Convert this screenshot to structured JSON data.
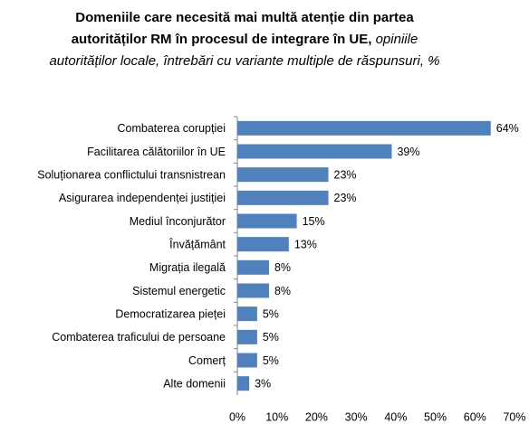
{
  "chart_data": {
    "type": "bar",
    "orientation": "horizontal",
    "title": "Domeniile care necesită mai multă atenție din partea autorităților  RM în procesul de integrare în UE,",
    "subtitle": "opiniile autorităților locale, întrebări cu variante multiple de răspunsuri,  %",
    "categories": [
      "Combaterea corupției",
      "Facilitarea călătoriilor în UE",
      "Soluționarea conflictului transnistrean",
      "Asigurarea independenței justiției",
      "Mediul înconjurător",
      "Învățământ",
      "Migrația ilegală",
      "Sistemul energetic",
      "Democratizarea pieței",
      "Combaterea traficului de persoane",
      "Comerț",
      "Alte domenii"
    ],
    "values": [
      64,
      39,
      23,
      23,
      15,
      13,
      8,
      8,
      5,
      5,
      5,
      3
    ],
    "value_labels": [
      "64%",
      "39%",
      "23%",
      "23%",
      "15%",
      "13%",
      "8%",
      "8%",
      "5%",
      "5%",
      "5%",
      "3%"
    ],
    "color": "#4f81bd",
    "xlim": [
      0,
      70
    ],
    "xticks": [
      {
        "value": 0,
        "label": "0%"
      },
      {
        "value": 10,
        "label": "10%"
      },
      {
        "value": 20,
        "label": "20%"
      },
      {
        "value": 30,
        "label": "30%"
      },
      {
        "value": 40,
        "label": "40%"
      },
      {
        "value": 50,
        "label": "50%"
      },
      {
        "value": 60,
        "label": "60%"
      },
      {
        "value": 70,
        "label": "70%"
      }
    ],
    "grid": false
  }
}
